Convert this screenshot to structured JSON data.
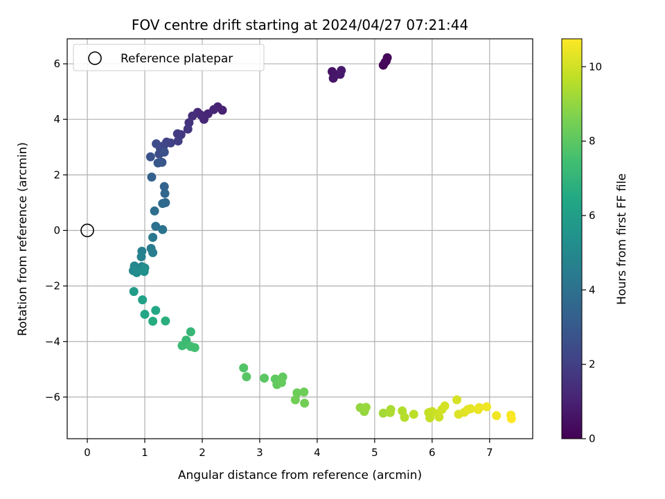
{
  "chart_data": {
    "type": "scatter",
    "title": "FOV centre drift starting at 2024/04/27 07:21:44",
    "xlabel": "Angular distance from reference (arcmin)",
    "ylabel": "Rotation from reference (arcmin)",
    "xlim": [
      -0.35,
      7.75
    ],
    "ylim": [
      -7.5,
      6.9
    ],
    "xticks": [
      0,
      1,
      2,
      3,
      4,
      5,
      6,
      7
    ],
    "yticks": [
      -6,
      -4,
      -2,
      0,
      2,
      4,
      6
    ],
    "grid": true,
    "legend": {
      "placement": "top-left",
      "entries": [
        "Reference platepar"
      ]
    },
    "reference_point": {
      "x": 0,
      "y": 0,
      "marker": "open-circle"
    },
    "colorbar": {
      "label": "Hours from first FF file",
      "colormap": "viridis",
      "range": [
        0,
        10.75
      ],
      "ticks": [
        0,
        2,
        4,
        6,
        8,
        10
      ]
    },
    "series": [
      {
        "points": [
          {
            "x": 5.15,
            "y": 5.95,
            "t": 0.1
          },
          {
            "x": 5.2,
            "y": 6.1,
            "t": 0.15
          },
          {
            "x": 5.22,
            "y": 6.22,
            "t": 0.2
          },
          {
            "x": 5.18,
            "y": 6.05,
            "t": 0.25
          },
          {
            "x": 4.26,
            "y": 5.72,
            "t": 0.55
          },
          {
            "x": 4.32,
            "y": 5.6,
            "t": 0.6
          },
          {
            "x": 4.28,
            "y": 5.48,
            "t": 0.65
          },
          {
            "x": 4.4,
            "y": 5.62,
            "t": 0.7
          },
          {
            "x": 4.42,
            "y": 5.76,
            "t": 0.75
          },
          {
            "x": 2.35,
            "y": 4.33,
            "t": 1.0
          },
          {
            "x": 2.27,
            "y": 4.45,
            "t": 1.05
          },
          {
            "x": 2.2,
            "y": 4.35,
            "t": 1.1
          },
          {
            "x": 2.1,
            "y": 4.2,
            "t": 1.15
          },
          {
            "x": 2.03,
            "y": 4.0,
            "t": 1.2
          },
          {
            "x": 1.98,
            "y": 4.15,
            "t": 1.25
          },
          {
            "x": 1.92,
            "y": 4.25,
            "t": 1.3
          },
          {
            "x": 1.83,
            "y": 4.12,
            "t": 1.4
          },
          {
            "x": 1.77,
            "y": 3.88,
            "t": 1.55
          },
          {
            "x": 1.75,
            "y": 3.65,
            "t": 1.65
          },
          {
            "x": 1.63,
            "y": 3.45,
            "t": 1.75
          },
          {
            "x": 1.57,
            "y": 3.48,
            "t": 1.85
          },
          {
            "x": 1.58,
            "y": 3.22,
            "t": 1.95
          },
          {
            "x": 1.45,
            "y": 3.15,
            "t": 2.05
          },
          {
            "x": 1.38,
            "y": 3.18,
            "t": 2.15
          },
          {
            "x": 1.33,
            "y": 3.05,
            "t": 2.25
          },
          {
            "x": 1.27,
            "y": 2.95,
            "t": 2.35
          },
          {
            "x": 1.2,
            "y": 3.12,
            "t": 2.45
          },
          {
            "x": 1.25,
            "y": 2.75,
            "t": 2.55
          },
          {
            "x": 1.34,
            "y": 2.82,
            "t": 2.65
          },
          {
            "x": 1.1,
            "y": 2.65,
            "t": 2.75
          },
          {
            "x": 1.3,
            "y": 2.45,
            "t": 2.85
          },
          {
            "x": 1.23,
            "y": 2.43,
            "t": 2.95
          },
          {
            "x": 1.12,
            "y": 1.92,
            "t": 3.3
          },
          {
            "x": 1.34,
            "y": 1.58,
            "t": 3.45
          },
          {
            "x": 1.35,
            "y": 1.33,
            "t": 3.55
          },
          {
            "x": 1.36,
            "y": 1.0,
            "t": 3.65
          },
          {
            "x": 1.31,
            "y": 0.97,
            "t": 3.75
          },
          {
            "x": 1.17,
            "y": 0.7,
            "t": 3.85
          },
          {
            "x": 1.19,
            "y": 0.15,
            "t": 4.0
          },
          {
            "x": 1.31,
            "y": 0.03,
            "t": 4.1
          },
          {
            "x": 1.14,
            "y": -0.25,
            "t": 4.3
          },
          {
            "x": 1.11,
            "y": -0.65,
            "t": 4.45
          },
          {
            "x": 1.14,
            "y": -0.8,
            "t": 4.55
          },
          {
            "x": 0.95,
            "y": -0.75,
            "t": 4.65
          },
          {
            "x": 0.94,
            "y": -0.95,
            "t": 4.75
          },
          {
            "x": 0.95,
            "y": -1.3,
            "t": 4.85
          },
          {
            "x": 0.82,
            "y": -1.28,
            "t": 4.95
          },
          {
            "x": 0.8,
            "y": -1.45,
            "t": 5.05
          },
          {
            "x": 0.86,
            "y": -1.52,
            "t": 5.15
          },
          {
            "x": 1.0,
            "y": -1.35,
            "t": 5.25
          },
          {
            "x": 0.99,
            "y": -1.48,
            "t": 5.35
          },
          {
            "x": 0.81,
            "y": -2.2,
            "t": 5.9
          },
          {
            "x": 0.96,
            "y": -2.5,
            "t": 6.1
          },
          {
            "x": 1.0,
            "y": -3.02,
            "t": 6.3
          },
          {
            "x": 1.19,
            "y": -2.88,
            "t": 6.45
          },
          {
            "x": 1.14,
            "y": -3.27,
            "t": 6.6
          },
          {
            "x": 1.36,
            "y": -3.26,
            "t": 6.75
          },
          {
            "x": 1.8,
            "y": -3.65,
            "t": 7.1
          },
          {
            "x": 1.72,
            "y": -3.95,
            "t": 7.2
          },
          {
            "x": 1.7,
            "y": -4.1,
            "t": 7.3
          },
          {
            "x": 1.65,
            "y": -4.15,
            "t": 7.35
          },
          {
            "x": 1.8,
            "y": -4.18,
            "t": 7.45
          },
          {
            "x": 1.87,
            "y": -4.22,
            "t": 7.5
          },
          {
            "x": 2.72,
            "y": -4.95,
            "t": 7.8
          },
          {
            "x": 2.77,
            "y": -5.27,
            "t": 7.9
          },
          {
            "x": 3.08,
            "y": -5.32,
            "t": 8.0
          },
          {
            "x": 3.27,
            "y": -5.35,
            "t": 8.05
          },
          {
            "x": 3.4,
            "y": -5.28,
            "t": 8.1
          },
          {
            "x": 3.3,
            "y": -5.55,
            "t": 8.15
          },
          {
            "x": 3.38,
            "y": -5.48,
            "t": 8.2
          },
          {
            "x": 3.65,
            "y": -5.85,
            "t": 8.3
          },
          {
            "x": 3.77,
            "y": -5.82,
            "t": 8.35
          },
          {
            "x": 3.62,
            "y": -6.1,
            "t": 8.4
          },
          {
            "x": 3.78,
            "y": -6.22,
            "t": 8.45
          },
          {
            "x": 4.75,
            "y": -6.38,
            "t": 9.0
          },
          {
            "x": 4.82,
            "y": -6.52,
            "t": 9.05
          },
          {
            "x": 4.85,
            "y": -6.37,
            "t": 9.1
          },
          {
            "x": 5.15,
            "y": -6.58,
            "t": 9.25
          },
          {
            "x": 5.28,
            "y": -6.45,
            "t": 9.35
          },
          {
            "x": 5.27,
            "y": -6.56,
            "t": 9.4
          },
          {
            "x": 5.48,
            "y": -6.5,
            "t": 9.5
          },
          {
            "x": 5.52,
            "y": -6.73,
            "t": 9.55
          },
          {
            "x": 5.68,
            "y": -6.62,
            "t": 9.65
          },
          {
            "x": 5.94,
            "y": -6.56,
            "t": 9.75
          },
          {
            "x": 5.96,
            "y": -6.75,
            "t": 9.8
          },
          {
            "x": 6.0,
            "y": -6.52,
            "t": 9.85
          },
          {
            "x": 6.1,
            "y": -6.6,
            "t": 9.9
          },
          {
            "x": 6.12,
            "y": -6.72,
            "t": 9.95
          },
          {
            "x": 6.17,
            "y": -6.45,
            "t": 10.0
          },
          {
            "x": 6.22,
            "y": -6.32,
            "t": 10.05
          },
          {
            "x": 6.43,
            "y": -6.1,
            "t": 10.1
          },
          {
            "x": 6.46,
            "y": -6.62,
            "t": 10.2
          },
          {
            "x": 6.56,
            "y": -6.55,
            "t": 10.25
          },
          {
            "x": 6.62,
            "y": -6.45,
            "t": 10.3
          },
          {
            "x": 6.67,
            "y": -6.42,
            "t": 10.35
          },
          {
            "x": 6.8,
            "y": -6.45,
            "t": 10.4
          },
          {
            "x": 6.82,
            "y": -6.38,
            "t": 10.45
          },
          {
            "x": 6.95,
            "y": -6.35,
            "t": 10.5
          },
          {
            "x": 7.12,
            "y": -6.67,
            "t": 10.55
          },
          {
            "x": 7.37,
            "y": -6.65,
            "t": 10.65
          },
          {
            "x": 7.38,
            "y": -6.78,
            "t": 10.75
          }
        ]
      }
    ]
  }
}
